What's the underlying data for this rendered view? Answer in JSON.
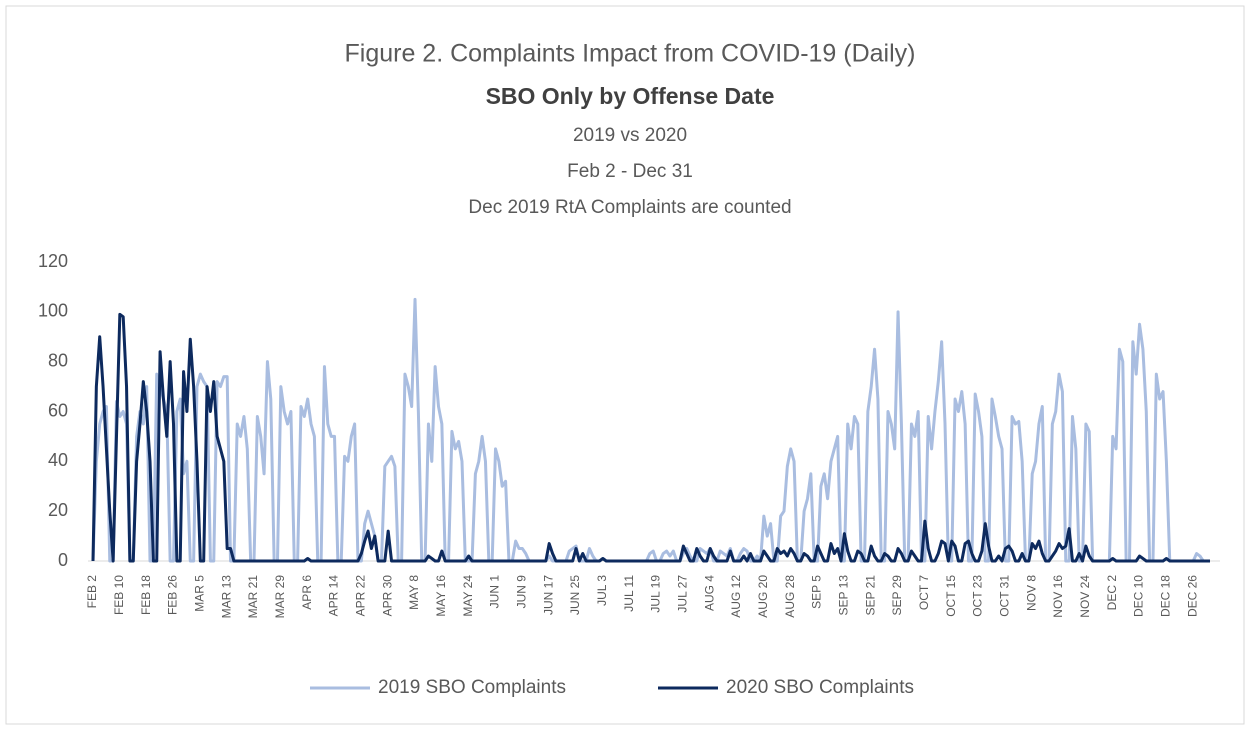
{
  "chart_data": {
    "type": "line",
    "title": "Figure 2. Complaints Impact from COVID-19 (Daily)",
    "subtitle": "SBO Only by Offense Date",
    "subtitle_lines": [
      "2019 vs 2020",
      "Feb 2 - Dec 31",
      "Dec 2019 RtA Complaints are counted"
    ],
    "categories": [
      "FEB 2",
      null,
      null,
      null,
      null,
      null,
      null,
      null,
      "FEB 10",
      null,
      null,
      null,
      null,
      null,
      null,
      null,
      "FEB 18",
      null,
      null,
      null,
      null,
      null,
      null,
      null,
      "FEB 26",
      null,
      null,
      null,
      null,
      null,
      null,
      null,
      "MAR 5",
      null,
      null,
      null,
      null,
      null,
      null,
      null,
      "MAR 13",
      null,
      null,
      null,
      null,
      null,
      null,
      null,
      "MAR 21",
      null,
      null,
      null,
      null,
      null,
      null,
      null,
      "MAR 29",
      null,
      null,
      null,
      null,
      null,
      null,
      null,
      "APR 6",
      null,
      null,
      null,
      null,
      null,
      null,
      null,
      "APR 14",
      null,
      null,
      null,
      null,
      null,
      null,
      null,
      "APR 22",
      null,
      null,
      null,
      null,
      null,
      null,
      null,
      "APR 30",
      null,
      null,
      null,
      null,
      null,
      null,
      null,
      "MAY 8",
      null,
      null,
      null,
      null,
      null,
      null,
      null,
      "MAY 16",
      null,
      null,
      null,
      null,
      null,
      null,
      null,
      "MAY 24",
      null,
      null,
      null,
      null,
      null,
      null,
      null,
      "JUN 1",
      null,
      null,
      null,
      null,
      null,
      null,
      null,
      "JUN 9",
      null,
      null,
      null,
      null,
      null,
      null,
      null,
      "JUN 17",
      null,
      null,
      null,
      null,
      null,
      null,
      null,
      "JUN 25",
      null,
      null,
      null,
      null,
      null,
      null,
      null,
      "JUL 3",
      null,
      null,
      null,
      null,
      null,
      null,
      null,
      "JUL 11",
      null,
      null,
      null,
      null,
      null,
      null,
      null,
      "JUL 19",
      null,
      null,
      null,
      null,
      null,
      null,
      null,
      "JUL 27",
      null,
      null,
      null,
      null,
      null,
      null,
      null,
      "AUG 4",
      null,
      null,
      null,
      null,
      null,
      null,
      null,
      "AUG 12",
      null,
      null,
      null,
      null,
      null,
      null,
      null,
      "AUG 20",
      null,
      null,
      null,
      null,
      null,
      null,
      null,
      "AUG 28",
      null,
      null,
      null,
      null,
      null,
      null,
      null,
      "SEP 5",
      null,
      null,
      null,
      null,
      null,
      null,
      null,
      "SEP 13",
      null,
      null,
      null,
      null,
      null,
      null,
      null,
      "SEP 21",
      null,
      null,
      null,
      null,
      null,
      null,
      null,
      "SEP 29",
      null,
      null,
      null,
      null,
      null,
      null,
      null,
      "OCT 7",
      null,
      null,
      null,
      null,
      null,
      null,
      null,
      "OCT 15",
      null,
      null,
      null,
      null,
      null,
      null,
      null,
      "OCT 23",
      null,
      null,
      null,
      null,
      null,
      null,
      null,
      "OCT 31",
      null,
      null,
      null,
      null,
      null,
      null,
      null,
      "NOV 8",
      null,
      null,
      null,
      null,
      null,
      null,
      null,
      "NOV 16",
      null,
      null,
      null,
      null,
      null,
      null,
      null,
      "NOV 24",
      null,
      null,
      null,
      null,
      null,
      null,
      null,
      "DEC 2",
      null,
      null,
      null,
      null,
      null,
      null,
      null,
      "DEC 10",
      null,
      null,
      null,
      null,
      null,
      null,
      null,
      "DEC 18",
      null,
      null,
      null,
      null,
      null,
      null,
      null,
      "DEC 26",
      null,
      null,
      null,
      null,
      null
    ],
    "series": [
      {
        "name": "2019 SBO Complaints",
        "color": "#a9bde0",
        "values": [
          0,
          40,
          55,
          60,
          62,
          0,
          0,
          64,
          58,
          60,
          55,
          0,
          0,
          50,
          60,
          55,
          70,
          0,
          0,
          75,
          70,
          65,
          60,
          0,
          0,
          60,
          65,
          35,
          40,
          0,
          0,
          70,
          75,
          72,
          70,
          0,
          0,
          72,
          70,
          74,
          74,
          0,
          0,
          55,
          50,
          58,
          45,
          0,
          0,
          58,
          50,
          35,
          80,
          65,
          0,
          0,
          70,
          60,
          55,
          60,
          0,
          0,
          62,
          58,
          65,
          55,
          50,
          0,
          0,
          78,
          55,
          50,
          50,
          0,
          0,
          42,
          40,
          50,
          55,
          0,
          0,
          15,
          20,
          15,
          10,
          0,
          0,
          38,
          40,
          42,
          38,
          0,
          0,
          75,
          70,
          62,
          105,
          60,
          0,
          0,
          55,
          40,
          78,
          62,
          55,
          0,
          0,
          52,
          45,
          48,
          40,
          0,
          0,
          0,
          35,
          40,
          50,
          40,
          0,
          0,
          45,
          40,
          30,
          32,
          0,
          0,
          8,
          5,
          5,
          3,
          0,
          0,
          0,
          0,
          0,
          0,
          2,
          0,
          0,
          0,
          0,
          0,
          4,
          5,
          6,
          0,
          0,
          0,
          5,
          2,
          0,
          0,
          1,
          0,
          0,
          0,
          0,
          0,
          0,
          0,
          0,
          0,
          0,
          0,
          0,
          0,
          3,
          4,
          0,
          0,
          3,
          4,
          2,
          4,
          0,
          0,
          3,
          5,
          2,
          0,
          0,
          5,
          4,
          3,
          5,
          0,
          0,
          4,
          3,
          2,
          5,
          0,
          0,
          3,
          5,
          4,
          0,
          0,
          2,
          0,
          18,
          10,
          15,
          0,
          0,
          18,
          20,
          38,
          45,
          40,
          0,
          0,
          20,
          25,
          35,
          0,
          0,
          30,
          35,
          25,
          40,
          45,
          50,
          0,
          0,
          55,
          45,
          58,
          55,
          0,
          0,
          60,
          70,
          85,
          65,
          0,
          0,
          60,
          55,
          45,
          100,
          55,
          0,
          0,
          55,
          50,
          60,
          0,
          0,
          58,
          45,
          60,
          72,
          88,
          55,
          0,
          0,
          65,
          60,
          68,
          55,
          0,
          0,
          67,
          60,
          50,
          0,
          0,
          65,
          58,
          50,
          45,
          0,
          0,
          58,
          55,
          56,
          40,
          0,
          0,
          35,
          40,
          55,
          62,
          0,
          0,
          55,
          60,
          75,
          68,
          0,
          0,
          58,
          45,
          0,
          0,
          55,
          52,
          0,
          0,
          0,
          0,
          0,
          0,
          50,
          45,
          85,
          80,
          0,
          0,
          88,
          75,
          95,
          85,
          60,
          0,
          0,
          75,
          65,
          68,
          40,
          0,
          0,
          0,
          0,
          0,
          0,
          0,
          0,
          3,
          2,
          0,
          0,
          0
        ]
      },
      {
        "name": "2020 SBO Complaints",
        "color": "#0d2a5e",
        "values": [
          0,
          70,
          90,
          70,
          45,
          20,
          0,
          50,
          99,
          98,
          70,
          0,
          0,
          40,
          55,
          72,
          60,
          40,
          0,
          0,
          84,
          65,
          50,
          80,
          55,
          0,
          0,
          76,
          60,
          89,
          70,
          40,
          0,
          0,
          70,
          60,
          72,
          50,
          45,
          40,
          5,
          5,
          0,
          0,
          0,
          0,
          0,
          0,
          0,
          0,
          0,
          0,
          0,
          0,
          0,
          0,
          0,
          0,
          0,
          0,
          0,
          0,
          0,
          0,
          1,
          0,
          0,
          0,
          0,
          0,
          0,
          0,
          0,
          0,
          0,
          0,
          0,
          0,
          0,
          0,
          3,
          8,
          12,
          5,
          10,
          0,
          0,
          0,
          12,
          0,
          0,
          0,
          0,
          0,
          0,
          0,
          0,
          0,
          0,
          0,
          2,
          1,
          0,
          0,
          4,
          0,
          0,
          0,
          0,
          0,
          0,
          0,
          2,
          0,
          0,
          0,
          0,
          0,
          0,
          0,
          0,
          0,
          0,
          0,
          0,
          0,
          0,
          0,
          0,
          0,
          0,
          0,
          0,
          0,
          0,
          0,
          7,
          3,
          0,
          0,
          0,
          0,
          0,
          0,
          5,
          0,
          3,
          0,
          0,
          0,
          0,
          0,
          1,
          0,
          0,
          0,
          0,
          0,
          0,
          0,
          0,
          0,
          0,
          0,
          0,
          0,
          0,
          0,
          0,
          0,
          0,
          0,
          0,
          0,
          0,
          0,
          6,
          3,
          0,
          0,
          5,
          2,
          0,
          0,
          5,
          2,
          0,
          0,
          0,
          0,
          4,
          0,
          0,
          0,
          2,
          0,
          3,
          0,
          0,
          0,
          4,
          2,
          0,
          0,
          5,
          3,
          4,
          2,
          5,
          3,
          0,
          0,
          3,
          2,
          0,
          0,
          6,
          3,
          0,
          0,
          7,
          3,
          5,
          0,
          11,
          4,
          0,
          0,
          4,
          3,
          0,
          0,
          6,
          2,
          0,
          0,
          3,
          2,
          0,
          0,
          5,
          3,
          0,
          0,
          4,
          2,
          0,
          0,
          16,
          5,
          0,
          0,
          3,
          8,
          7,
          0,
          8,
          6,
          0,
          0,
          7,
          8,
          3,
          0,
          0,
          4,
          15,
          6,
          0,
          0,
          2,
          0,
          5,
          6,
          4,
          0,
          0,
          3,
          0,
          0,
          7,
          5,
          8,
          3,
          0,
          0,
          2,
          4,
          7,
          5,
          6,
          13,
          0,
          0,
          3,
          0,
          6,
          2,
          0,
          0,
          0,
          0,
          0,
          0,
          1,
          0,
          0,
          0,
          0,
          0,
          0,
          0,
          2,
          1,
          0,
          0,
          0,
          0,
          0,
          0,
          1,
          0,
          0,
          0,
          0,
          0,
          0,
          0,
          0,
          0,
          0,
          0,
          0,
          0
        ]
      }
    ],
    "ylim": [
      0,
      120
    ],
    "yticks": [
      0,
      20,
      40,
      60,
      80,
      100,
      120
    ],
    "grid": false,
    "legend": "bottom"
  }
}
